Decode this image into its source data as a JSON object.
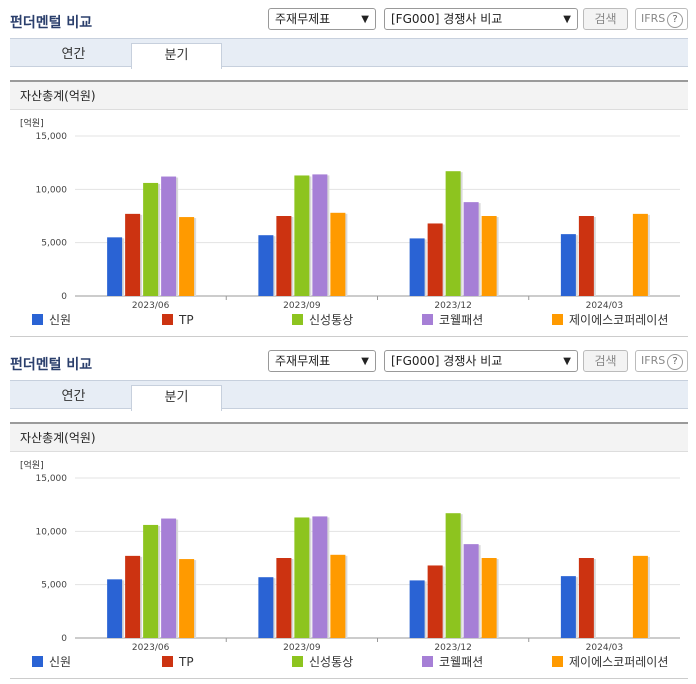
{
  "header": {
    "title": "펀더멘털 비교",
    "select_left": "주재무제표",
    "select_right": "[FG000] 경쟁사 비교",
    "search_label": "검색",
    "ifrs_label": "IFRS",
    "help_glyph": "?"
  },
  "tabs": [
    {
      "label": "연간",
      "active": false
    },
    {
      "label": "분기",
      "active": true
    }
  ],
  "section_title": "자산총계(억원)",
  "colors": {
    "신원": "#2a63d4",
    "TP": "#cc3311",
    "신성통상": "#8dc41f",
    "코웰패션": "#a67fd6",
    "제이에스코퍼레이션": "#ff9a00"
  },
  "chart_data": {
    "type": "bar",
    "unit_label": "[억원]",
    "categories": [
      "2023/06",
      "2023/09",
      "2023/12",
      "2024/03"
    ],
    "ylim": [
      0,
      15000
    ],
    "yticks": [
      "0",
      "5,000",
      "10,000",
      "15,000"
    ],
    "ytick_values": [
      0,
      5000,
      10000,
      15000
    ],
    "legend_position": "bottom",
    "series": [
      {
        "name": "신원",
        "values": [
          5500,
          5700,
          5400,
          5800
        ]
      },
      {
        "name": "TP",
        "values": [
          7700,
          7500,
          6800,
          7500
        ]
      },
      {
        "name": "신성통상",
        "values": [
          10600,
          11300,
          11700,
          null
        ]
      },
      {
        "name": "코웰패션",
        "values": [
          11200,
          11400,
          8800,
          null
        ]
      },
      {
        "name": "제이에스코퍼레이션",
        "values": [
          7400,
          7800,
          7500,
          7700
        ]
      }
    ]
  }
}
